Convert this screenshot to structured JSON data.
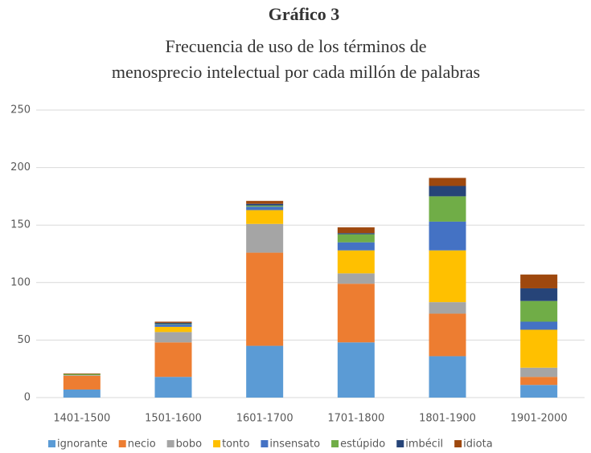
{
  "chart_data": {
    "type": "stacked_bar",
    "title": "Gráfico 3",
    "subtitle": [
      "Frecuencia de uso de los términos de",
      "menosprecio intelectual por cada millón de palabras"
    ],
    "categories": [
      "1401-1500",
      "1501-1600",
      "1601-1700",
      "1701-1800",
      "1801-1900",
      "1901-2000"
    ],
    "series": [
      {
        "name": "ignorante",
        "color": "#5b9bd5",
        "values": [
          7,
          18,
          45,
          48,
          36,
          11
        ]
      },
      {
        "name": "necio",
        "color": "#ed7d31",
        "values": [
          12,
          30,
          81,
          51,
          37,
          7
        ]
      },
      {
        "name": "bobo",
        "color": "#a5a5a5",
        "values": [
          0.5,
          9,
          25,
          9,
          10,
          8
        ]
      },
      {
        "name": "tonto",
        "color": "#ffc000",
        "values": [
          0,
          4.5,
          12,
          20,
          45,
          33
        ]
      },
      {
        "name": "insensato",
        "color": "#4472c4",
        "values": [
          0,
          2,
          3,
          7,
          25,
          7
        ]
      },
      {
        "name": "estúpido",
        "color": "#70ad47",
        "values": [
          1,
          0.5,
          1,
          7,
          22,
          18
        ]
      },
      {
        "name": "imbécil",
        "color": "#264478",
        "values": [
          0,
          1,
          1.5,
          1,
          9,
          11
        ]
      },
      {
        "name": "idiota",
        "color": "#9e480e",
        "values": [
          0.5,
          1,
          2.5,
          5,
          7,
          12
        ]
      }
    ],
    "ylim": [
      0,
      250
    ],
    "yticks": [
      0,
      50,
      100,
      150,
      200,
      250
    ],
    "grid": true,
    "legend": "bottom"
  }
}
